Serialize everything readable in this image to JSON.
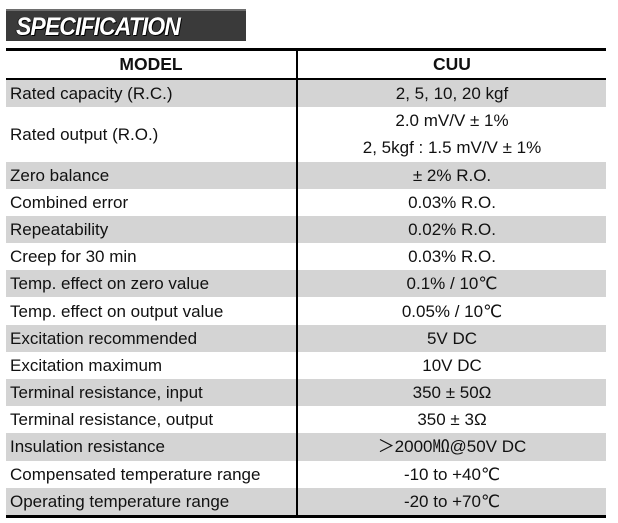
{
  "section_title": "SPECIFICATION",
  "table": {
    "headers": [
      "MODEL",
      "CUU"
    ],
    "rows": [
      {
        "param": "Rated capacity (R.C.)",
        "values": [
          "2, 5, 10, 20 kgf"
        ]
      },
      {
        "param": "Rated output (R.O.)",
        "values": [
          "2.0 mV/V ± 1%",
          "2, 5kgf : 1.5 mV/V ± 1%"
        ]
      },
      {
        "param": "Zero balance",
        "values": [
          "± 2% R.O."
        ]
      },
      {
        "param": "Combined error",
        "values": [
          "0.03% R.O."
        ]
      },
      {
        "param": "Repeatability",
        "values": [
          "0.02% R.O."
        ]
      },
      {
        "param": "Creep for 30 min",
        "values": [
          "0.03% R.O."
        ]
      },
      {
        "param": "Temp. effect on zero value",
        "values": [
          "0.1% / 10℃"
        ]
      },
      {
        "param": "Temp. effect on output value",
        "values": [
          "0.05% / 10℃"
        ]
      },
      {
        "param": "Excitation recommended",
        "values": [
          "5V DC"
        ]
      },
      {
        "param": "Excitation maximum",
        "values": [
          "10V DC"
        ]
      },
      {
        "param": "Terminal resistance, input",
        "values": [
          "350 ± 50Ω"
        ]
      },
      {
        "param": "Terminal resistance, output",
        "values": [
          "350 ± 3Ω"
        ]
      },
      {
        "param": "Insulation resistance",
        "values": [
          "＞2000㏁@50V DC"
        ]
      },
      {
        "param": "Compensated temperature range",
        "values": [
          "-10 to +40℃"
        ]
      },
      {
        "param": "Operating temperature range",
        "values": [
          "-20 to +70℃"
        ]
      }
    ]
  },
  "colors": {
    "banner": "#3a3a3a",
    "row_shade": "#d4d4d4",
    "rule": "#000000"
  }
}
